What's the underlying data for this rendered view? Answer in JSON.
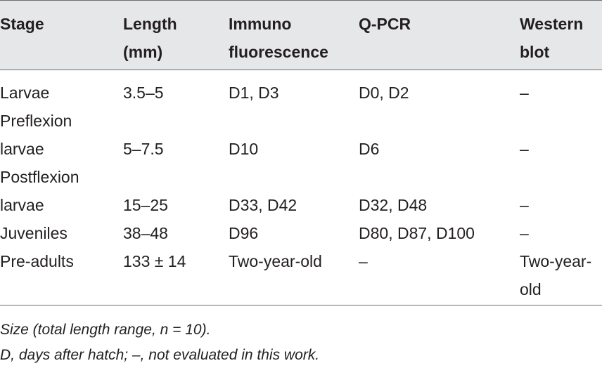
{
  "table": {
    "headers": [
      "Stage",
      "Length\n(mm)",
      "Immuno\nfluorescence",
      "Q-PCR",
      "Western\nblot"
    ],
    "rows": [
      [
        "Larvae\nPreflexion",
        "3.5–5",
        "D1, D3",
        "D0, D2",
        "–"
      ],
      [
        "larvae\nPostflexion",
        "5–7.5",
        "D10",
        "D6",
        "–"
      ],
      [
        "larvae",
        "15–25",
        "D33, D42",
        "D32, D48",
        "–"
      ],
      [
        "Juveniles",
        "38–48",
        "D96",
        "D80, D87, D100",
        "–"
      ],
      [
        "Pre-adults",
        "133 ± 14",
        "Two-year-old",
        "–",
        "Two-year-\nold"
      ]
    ]
  },
  "notes": [
    "Size (total length range, n = 10).",
    "D, days after hatch; –, not evaluated in this work."
  ]
}
